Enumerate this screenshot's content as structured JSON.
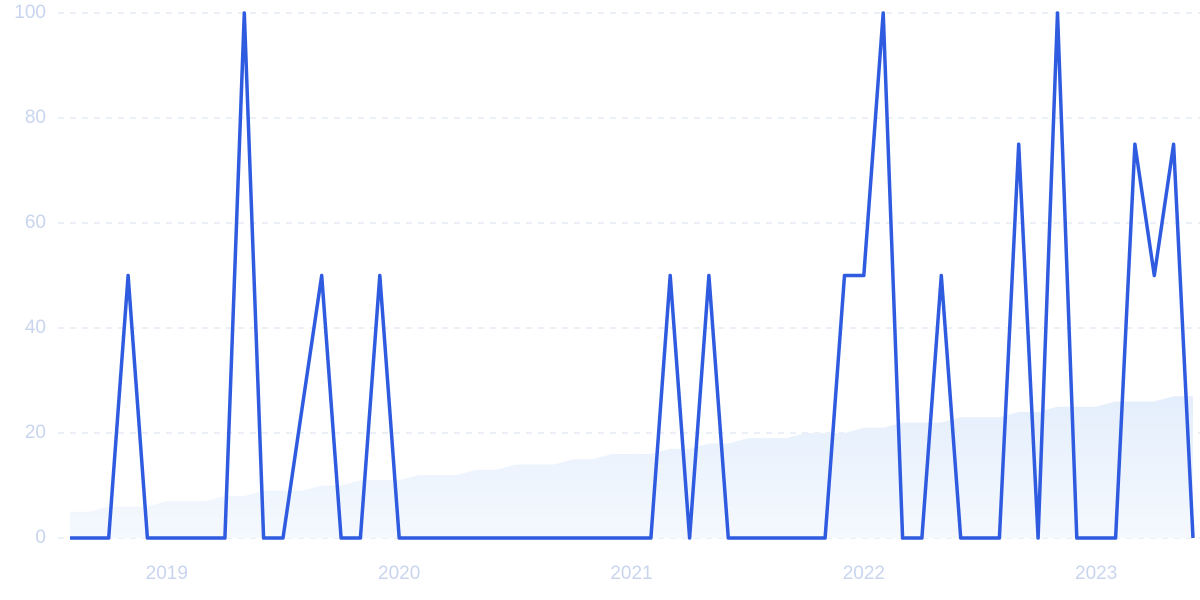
{
  "chart_data": {
    "type": "line",
    "categories": [
      null,
      null,
      null,
      null,
      null,
      "2019",
      null,
      null,
      null,
      null,
      null,
      null,
      null,
      null,
      null,
      null,
      null,
      "2020",
      null,
      null,
      null,
      null,
      null,
      null,
      null,
      null,
      null,
      null,
      null,
      "2021",
      null,
      null,
      null,
      null,
      null,
      null,
      null,
      null,
      null,
      null,
      null,
      "2022",
      null,
      null,
      null,
      null,
      null,
      null,
      null,
      null,
      null,
      null,
      null,
      "2023",
      null,
      null,
      null,
      null,
      null
    ],
    "series": [
      {
        "color": "#e4eefc",
        "style": "area",
        "values": [
          5,
          5,
          6,
          6,
          6,
          7,
          7,
          7,
          8,
          8,
          9,
          9,
          9,
          10,
          10,
          11,
          11,
          11,
          12,
          12,
          12,
          13,
          13,
          14,
          14,
          14,
          15,
          15,
          16,
          16,
          16,
          17,
          17,
          18,
          18,
          19,
          19,
          19,
          20,
          20,
          20,
          21,
          21,
          22,
          22,
          22,
          23,
          23,
          23,
          24,
          24,
          25,
          25,
          25,
          26,
          26,
          26,
          27,
          27
        ]
      },
      {
        "color": "#2f5be0",
        "style": "line",
        "values": [
          0,
          0,
          0,
          50,
          0,
          0,
          0,
          0,
          0,
          100,
          0,
          0,
          25,
          50,
          0,
          0,
          50,
          0,
          0,
          0,
          0,
          0,
          0,
          0,
          0,
          0,
          0,
          0,
          0,
          0,
          0,
          50,
          0,
          50,
          0,
          0,
          0,
          0,
          0,
          0,
          50,
          50,
          100,
          0,
          0,
          50,
          0,
          0,
          0,
          75,
          0,
          100,
          0,
          0,
          0,
          75,
          50,
          75,
          0
        ]
      }
    ],
    "ylim": [
      0,
      100
    ],
    "yticks": [
      0,
      20,
      40,
      60,
      80,
      100
    ],
    "grid": true
  }
}
